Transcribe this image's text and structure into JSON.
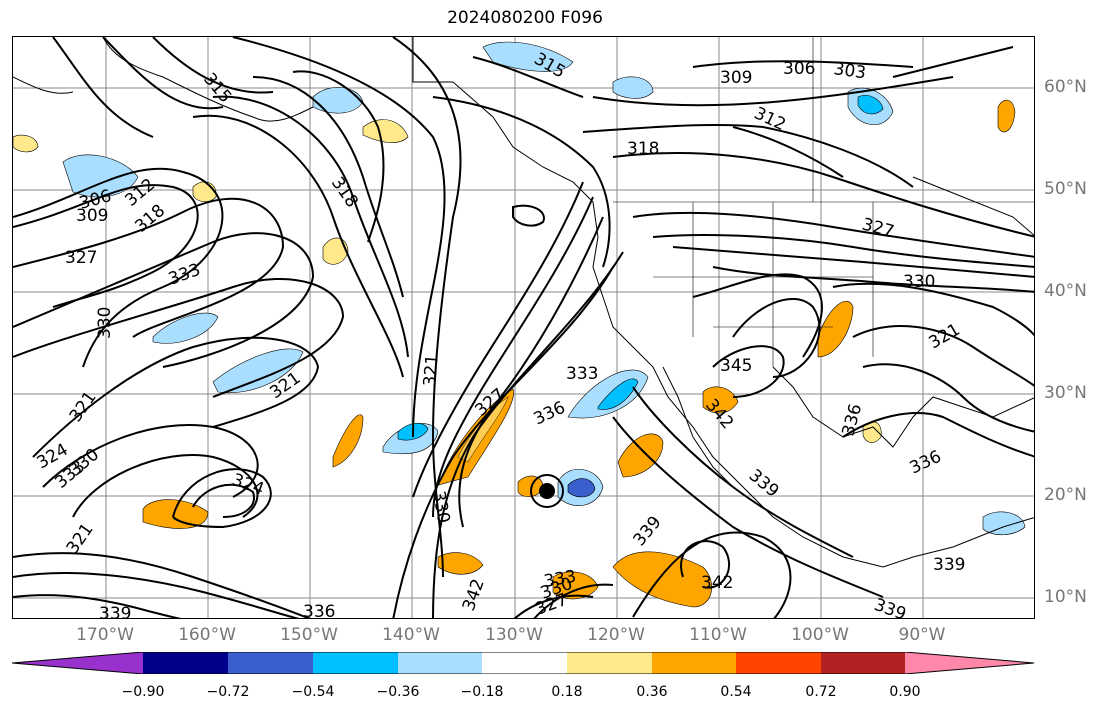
{
  "title": "2024080200 F096",
  "lon_labels": [
    "170°W",
    "160°W",
    "150°W",
    "140°W",
    "130°W",
    "120°W",
    "110°W",
    "100°W",
    "90°W"
  ],
  "lat_labels": [
    "60°N",
    "50°N",
    "40°N",
    "30°N",
    "20°N",
    "10°N"
  ],
  "colorbar": {
    "ticks": [
      "−0.90",
      "−0.72",
      "−0.54",
      "−0.36",
      "−0.18",
      "0.18",
      "0.36",
      "0.54",
      "0.72",
      "0.90"
    ],
    "colors": [
      "#9932cc",
      "#00008b",
      "#3a5fcd",
      "#00bfff",
      "#aadeff",
      "#ffffff",
      "#ffe98a",
      "#ffa500",
      "#ff4500",
      "#b22222",
      "#ff88aa"
    ]
  },
  "contour_labels": {
    "c315": "315",
    "c315b": "315",
    "c309a": "309",
    "c306a": "306",
    "c303": "303",
    "c312": "312",
    "c318a": "318",
    "c318b": "318",
    "c306b": "306",
    "c309b": "309",
    "c312b": "312",
    "c318c": "318",
    "c327a": "327",
    "c327b": "327",
    "c333a": "333",
    "c330a": "330",
    "c330b": "330",
    "c321a": "321",
    "c321b": "321",
    "c321c": "321",
    "c324a": "324",
    "c324b": "324",
    "c330c": "330",
    "c333b": "333",
    "c327c": "327",
    "c336a": "336",
    "c330d": "330",
    "c342a": "342",
    "c330e": "330",
    "c327d": "327",
    "c333c": "333",
    "c336b": "336",
    "c339a": "339",
    "c342b": "342",
    "c339b": "339",
    "c345": "345",
    "c342c": "342",
    "c333d": "333",
    "c336c": "336",
    "c339c": "339",
    "c339d": "339",
    "c321d": "321",
    "c321e": "321",
    "c336d": "336",
    "c339e": "339"
  }
}
